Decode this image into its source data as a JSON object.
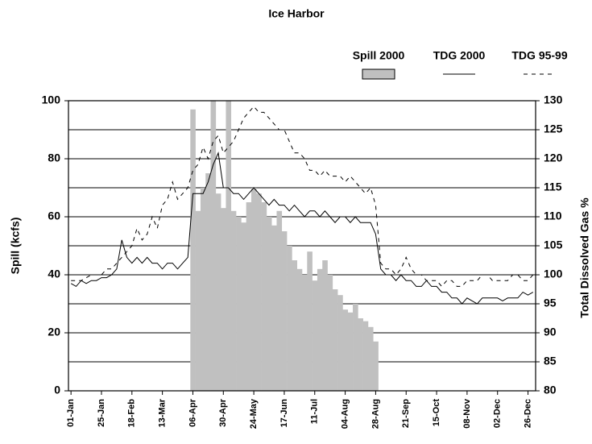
{
  "chart_data": {
    "type": "bar-line",
    "title": "Ice Harbor",
    "ylabel": "Spill (kcfs)",
    "y2label": "Total Dissolved Gas %",
    "categories": [
      "01-Jan",
      null,
      null,
      null,
      null,
      null,
      "25-Jan",
      null,
      null,
      null,
      null,
      null,
      "18-Feb",
      null,
      null,
      null,
      null,
      null,
      "13-Mar",
      null,
      null,
      null,
      null,
      null,
      "06-Apr",
      null,
      null,
      null,
      null,
      null,
      "30-Apr",
      null,
      null,
      null,
      null,
      null,
      "24-May",
      null,
      null,
      null,
      null,
      null,
      "17-Jun",
      null,
      null,
      null,
      null,
      null,
      "11-Jul",
      null,
      null,
      null,
      null,
      null,
      "04-Aug",
      null,
      null,
      null,
      null,
      null,
      "28-Aug",
      null,
      null,
      null,
      null,
      null,
      "21-Sep",
      null,
      null,
      null,
      null,
      null,
      "15-Oct",
      null,
      null,
      null,
      null,
      null,
      "08-Nov",
      null,
      null,
      null,
      null,
      null,
      "02-Dec",
      null,
      null,
      null,
      null,
      null,
      "26-Dec",
      null
    ],
    "series": [
      {
        "name": "Spill 2000",
        "type": "bar",
        "color": "#c0c0c0",
        "values": [
          0,
          0,
          0,
          0,
          0,
          0,
          0,
          0,
          0,
          0,
          0,
          0,
          0,
          0,
          0,
          0,
          0,
          0,
          0,
          0,
          0,
          0,
          0,
          0,
          97,
          62,
          70,
          75,
          100,
          68,
          63,
          100,
          62,
          60,
          58,
          65,
          70,
          68,
          65,
          60,
          57,
          62,
          55,
          50,
          45,
          42,
          40,
          48,
          38,
          42,
          45,
          40,
          35,
          33,
          28,
          27,
          30,
          25,
          24,
          22,
          17,
          0,
          0,
          0,
          0,
          0,
          0,
          0,
          0,
          0,
          0,
          0,
          0,
          0,
          0,
          0,
          0,
          0,
          0,
          0,
          0,
          0,
          0,
          0,
          0,
          0,
          0,
          0,
          0,
          0,
          0,
          0
        ]
      },
      {
        "name": "TDG 2000",
        "type": "line",
        "axis": "y2",
        "color": "#000000",
        "dash": false,
        "values": [
          98.5,
          98,
          99,
          98.5,
          99,
          99,
          99.5,
          99.5,
          100,
          101,
          106,
          103,
          102,
          103,
          102,
          103,
          102,
          102,
          101,
          102,
          102,
          101,
          102,
          103,
          114,
          114,
          114,
          116,
          119,
          121,
          115,
          115,
          114,
          114,
          113,
          114,
          115,
          114,
          113,
          112,
          113,
          112,
          112,
          111,
          112,
          111,
          110,
          111,
          111,
          110,
          111,
          110,
          109,
          110,
          110,
          109,
          110,
          109,
          109,
          109,
          107,
          101,
          100,
          100,
          99,
          100,
          99,
          99,
          98,
          98,
          99,
          98,
          98,
          97,
          97,
          96,
          96,
          95,
          96,
          95.5,
          95,
          96,
          96,
          96,
          96,
          95.5,
          96,
          96,
          96,
          97,
          96.5,
          97
        ]
      },
      {
        "name": "TDG 95-99",
        "type": "line",
        "axis": "y2",
        "color": "#000000",
        "dash": true,
        "values": [
          99,
          99,
          99,
          99.5,
          100,
          100,
          100,
          101,
          101,
          102,
          103,
          104,
          105,
          108,
          106,
          107,
          110,
          108,
          112,
          113,
          116,
          113,
          114,
          115,
          118,
          119,
          122,
          120,
          123,
          124,
          121,
          122,
          123,
          125,
          127,
          128,
          129,
          128,
          128,
          127,
          126,
          125,
          125,
          123,
          121,
          121,
          120,
          118,
          118,
          117,
          118,
          117,
          117,
          117,
          116,
          117,
          116,
          115,
          114,
          115,
          112,
          102,
          101,
          101,
          100,
          101,
          103,
          101,
          100,
          100,
          99,
          99,
          99,
          98,
          99,
          99,
          98,
          98,
          99,
          99,
          99,
          100,
          100,
          99,
          99,
          99,
          99,
          100,
          100,
          99,
          99,
          100
        ]
      }
    ],
    "ylim": [
      0,
      100
    ],
    "yticks": [
      0,
      20,
      40,
      60,
      80,
      100
    ],
    "y2lim": [
      80,
      130
    ],
    "y2ticks": [
      80,
      85,
      90,
      95,
      100,
      105,
      110,
      115,
      120,
      125,
      130
    ],
    "grid": true
  }
}
